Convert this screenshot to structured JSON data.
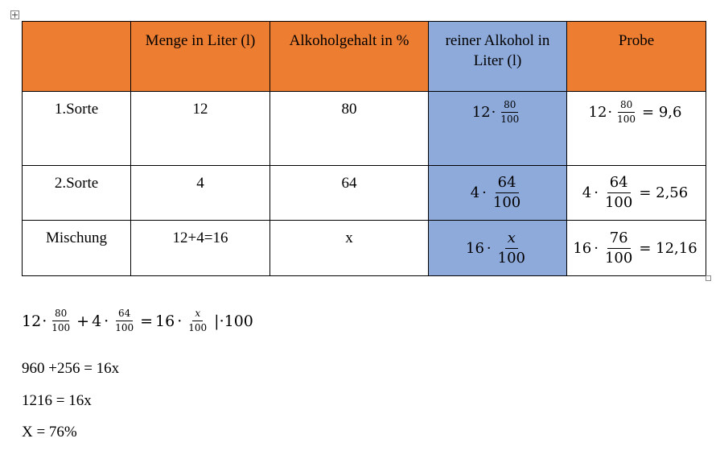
{
  "table": {
    "header": [
      "",
      "Menge in Liter (l)",
      "Alkoholgehalt in %",
      "reiner Alkohol in Liter (l)",
      "Probe"
    ],
    "rows": [
      {
        "label": "1.Sorte",
        "menge": "12",
        "gehalt": "80",
        "rein": {
          "factor": "12",
          "num": "80",
          "den": "100"
        },
        "probe": {
          "factor": "12",
          "num": "80",
          "den": "100",
          "result": "= 9,6"
        }
      },
      {
        "label": "2.Sorte",
        "menge": "4",
        "gehalt": "64",
        "rein": {
          "factor": "4",
          "num": "64",
          "den": "100"
        },
        "probe": {
          "factor": "4",
          "num": "64",
          "den": "100",
          "result": "= 2,56"
        }
      },
      {
        "label": "Mischung",
        "menge": "12+4=16",
        "gehalt": "x",
        "rein": {
          "factor": "16",
          "num": "x",
          "den": "100"
        },
        "probe": {
          "factor": "16",
          "num": "76",
          "den": "100",
          "result": "= 12,16"
        }
      }
    ],
    "colors": {
      "header": "#ed7d31",
      "alcohol_column": "#8eaadb"
    }
  },
  "equation": {
    "t1_factor": "12",
    "t1_num": "80",
    "t1_den": "100",
    "plus": "+",
    "t2_factor": "4",
    "t2_num": "64",
    "t2_den": "100",
    "equals": "=",
    "t3_factor": "16",
    "t3_num": "x",
    "t3_den": "100",
    "operation": "|·100"
  },
  "steps": [
    "960 +256 = 16x",
    "1216 = 16x",
    "X = 76%"
  ]
}
